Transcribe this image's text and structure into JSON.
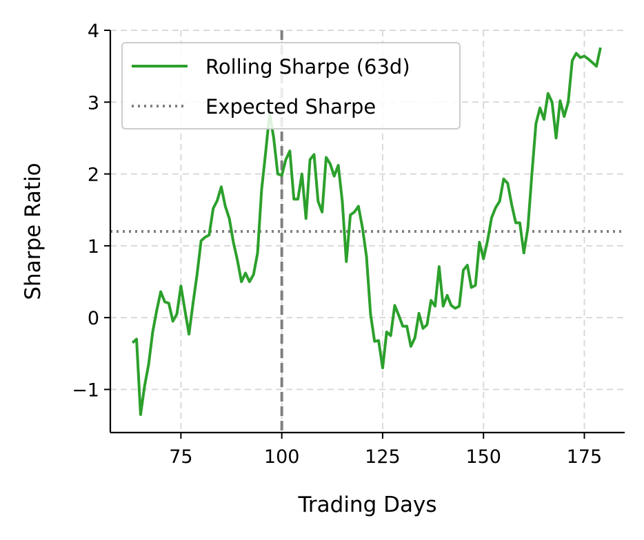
{
  "chart_data": {
    "type": "line",
    "xlabel": "Trading Days",
    "ylabel": "Sharpe Ratio",
    "xlim": [
      57.5,
      185
    ],
    "ylim": [
      -1.6,
      4
    ],
    "xticks": [
      75,
      100,
      125,
      150,
      175
    ],
    "yticks": [
      -1,
      0,
      1,
      2,
      3,
      4
    ],
    "ytick_labels": [
      "−1",
      "0",
      "1",
      "2",
      "3",
      "4"
    ],
    "grid": true,
    "legend": {
      "placement": "top-left"
    },
    "series": [
      {
        "name": "Rolling Sharpe (63d)",
        "color": "#2ca02c",
        "style": "solid",
        "x": [
          63,
          64,
          65,
          66,
          67,
          68,
          69,
          70,
          71,
          72,
          73,
          74,
          75,
          76,
          77,
          78,
          79,
          80,
          81,
          82,
          83,
          84,
          85,
          86,
          87,
          88,
          89,
          90,
          91,
          92,
          93,
          94,
          95,
          96,
          97,
          98,
          99,
          100,
          101,
          102,
          103,
          104,
          105,
          106,
          107,
          108,
          109,
          110,
          111,
          112,
          113,
          114,
          115,
          116,
          117,
          118,
          119,
          120,
          121,
          122,
          123,
          124,
          125,
          126,
          127,
          128,
          129,
          130,
          131,
          132,
          133,
          134,
          135,
          136,
          137,
          138,
          139,
          140,
          141,
          142,
          143,
          144,
          145,
          146,
          147,
          148,
          149,
          150,
          151,
          152,
          153,
          154,
          155,
          156,
          157,
          158,
          159,
          160,
          161,
          162,
          163,
          164,
          165,
          166,
          167,
          168,
          169,
          170,
          171,
          172,
          173,
          174,
          175,
          176,
          177,
          178,
          179
        ],
        "y": [
          -0.35,
          -0.3,
          -1.35,
          -0.95,
          -0.65,
          -0.2,
          0.1,
          0.36,
          0.22,
          0.2,
          -0.05,
          0.05,
          0.44,
          0.1,
          -0.23,
          0.2,
          0.6,
          1.07,
          1.12,
          1.15,
          1.52,
          1.63,
          1.82,
          1.55,
          1.38,
          1.05,
          0.8,
          0.5,
          0.62,
          0.5,
          0.6,
          0.9,
          1.78,
          2.3,
          2.85,
          2.5,
          2.0,
          1.98,
          2.2,
          2.32,
          1.65,
          1.65,
          2.0,
          1.38,
          2.2,
          2.27,
          1.62,
          1.47,
          2.23,
          2.14,
          1.97,
          2.12,
          1.62,
          0.78,
          1.43,
          1.47,
          1.55,
          1.25,
          0.85,
          0.05,
          -0.33,
          -0.32,
          -0.7,
          -0.2,
          -0.25,
          0.17,
          0.03,
          -0.12,
          -0.12,
          -0.4,
          -0.28,
          0.06,
          -0.15,
          -0.1,
          0.24,
          0.16,
          0.71,
          0.16,
          0.31,
          0.17,
          0.13,
          0.16,
          0.66,
          0.73,
          0.42,
          0.45,
          1.05,
          0.82,
          1.07,
          1.39,
          1.53,
          1.62,
          1.93,
          1.87,
          1.57,
          1.32,
          1.32,
          0.9,
          1.25,
          2.0,
          2.7,
          2.92,
          2.76,
          3.12,
          3.0,
          2.5,
          3.02,
          2.8,
          3.0,
          3.58,
          3.68,
          3.62,
          3.64,
          3.6,
          3.55,
          3.5,
          3.76
        ]
      },
      {
        "name": "Expected Sharpe",
        "color": "#7f7f7f",
        "style": "dotted",
        "y": 1.2
      }
    ],
    "annotations": [
      {
        "type": "vline",
        "x": 100,
        "color": "#7f7f7f",
        "style": "dashed"
      }
    ]
  }
}
